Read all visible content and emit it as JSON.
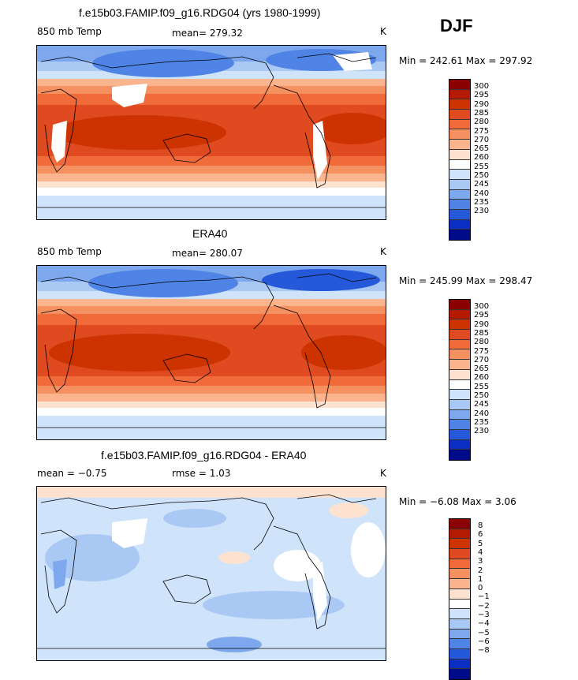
{
  "season": "DJF",
  "panels": [
    {
      "title": "f.e15b03.FAMIP.f09_g16.RDG04 (yrs 1980-1999)",
      "left_label": "850 mb Temp",
      "center_label": "mean= 279.32",
      "right_label": "K",
      "minmax": "Min = 242.61 Max = 297.92",
      "palette": "abs"
    },
    {
      "title": "ERA40",
      "left_label": "850 mb Temp",
      "center_label": "mean= 280.07",
      "right_label": "K",
      "minmax": "Min = 245.99 Max = 298.47",
      "palette": "abs"
    },
    {
      "title": "f.e15b03.FAMIP.f09_g16.RDG04 - ERA40",
      "left_label": "mean =   −0.75",
      "center_label": "rmse =    1.03",
      "right_label": "K",
      "minmax": "Min =  −6.08 Max =   3.06",
      "palette": "diff"
    }
  ],
  "colorbars": {
    "abs": {
      "labels": [
        "300",
        "295",
        "290",
        "285",
        "280",
        "275",
        "270",
        "265",
        "260",
        "255",
        "250",
        "245",
        "240",
        "235",
        "230"
      ],
      "colors": [
        "#8b0000",
        "#b31a00",
        "#cc3300",
        "#e04a20",
        "#f06a3a",
        "#f59060",
        "#fbb58e",
        "#fde3cf",
        "#ffffff",
        "#cfe3fa",
        "#a9c8f4",
        "#7ea8ee",
        "#4f84e6",
        "#2659d9",
        "#0a2fc2",
        "#000b8a"
      ]
    },
    "diff": {
      "labels": [
        "8",
        "6",
        "5",
        "4",
        "3",
        "2",
        "1",
        "0",
        "−1",
        "−2",
        "−3",
        "−4",
        "−5",
        "−6",
        "−8"
      ],
      "colors": [
        "#8b0000",
        "#b31a00",
        "#cc3300",
        "#e04a20",
        "#f06a3a",
        "#f59060",
        "#fbb58e",
        "#fde3cf",
        "#ffffff",
        "#cfe3fa",
        "#a9c8f4",
        "#7ea8ee",
        "#4f84e6",
        "#2659d9",
        "#0a2fc2",
        "#000b8a"
      ]
    }
  }
}
